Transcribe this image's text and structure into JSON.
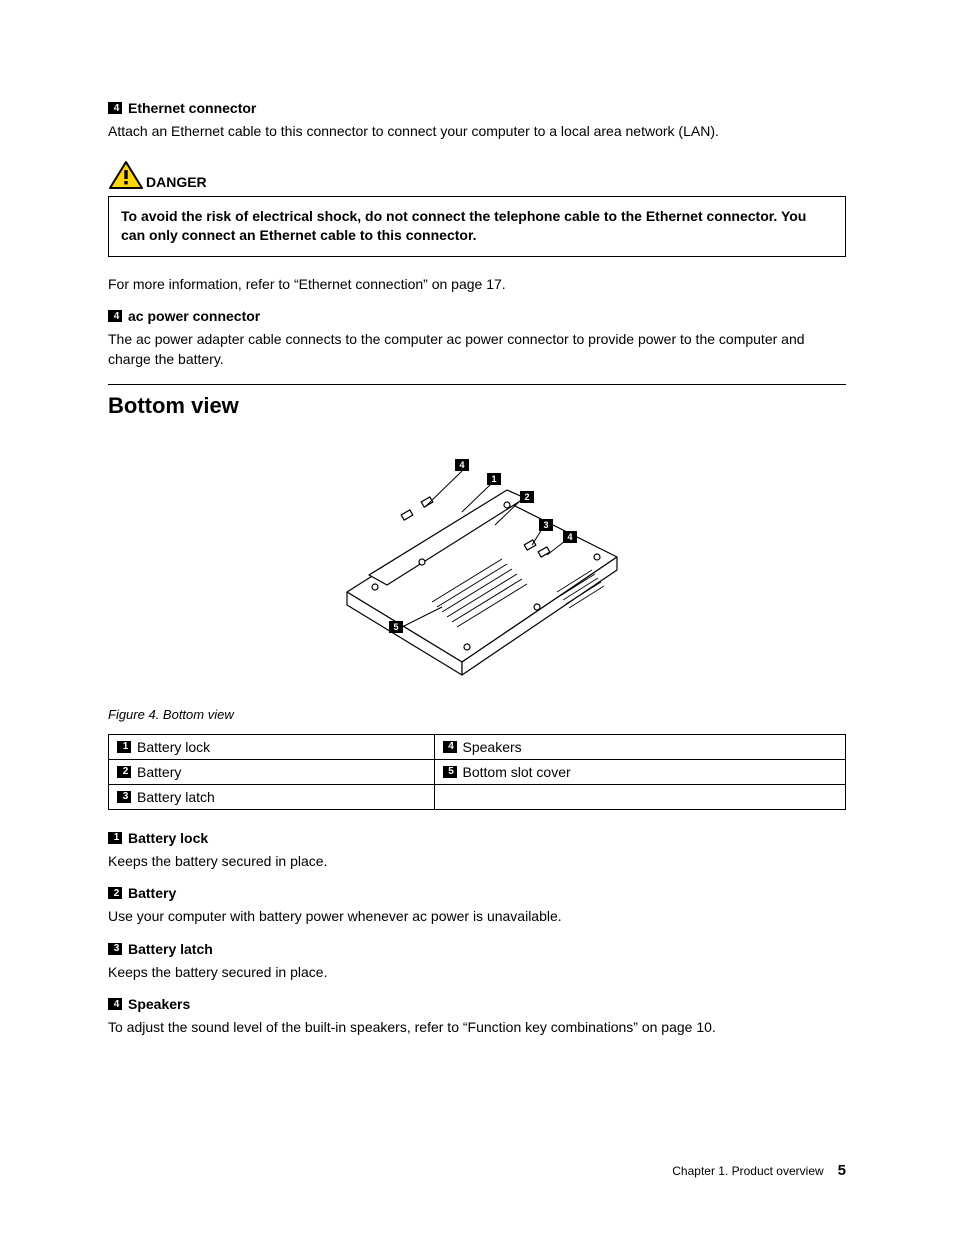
{
  "section1": {
    "badge": "4",
    "title": "Ethernet connector",
    "body": "Attach an Ethernet cable to this connector to connect your computer to a local area network (LAN)."
  },
  "danger": {
    "label": "DANGER",
    "text": "To avoid the risk of electrical shock, do not connect the telephone cable to the Ethernet connector. You can only connect an Ethernet cable to this connector."
  },
  "more_info": "For more information, refer to “Ethernet connection” on page 17.",
  "section2": {
    "badge": "4",
    "title": "ac power connector",
    "body": "The ac power adapter cable connects to the computer ac power connector to provide power to the computer and charge the battery."
  },
  "main_heading": "Bottom view",
  "figure": {
    "caption": "Figure 4.  Bottom view",
    "callouts": [
      "1",
      "2",
      "3",
      "4",
      "4",
      "5"
    ]
  },
  "table": {
    "rows": [
      [
        {
          "num": "1",
          "label": "Battery lock"
        },
        {
          "num": "4",
          "label": "Speakers"
        }
      ],
      [
        {
          "num": "2",
          "label": "Battery"
        },
        {
          "num": "5",
          "label": "Bottom slot cover"
        }
      ],
      [
        {
          "num": "3",
          "label": "Battery latch"
        },
        null
      ]
    ]
  },
  "descriptions": [
    {
      "num": "1",
      "title": "Battery lock",
      "body": "Keeps the battery secured in place."
    },
    {
      "num": "2",
      "title": "Battery",
      "body": "Use your computer with battery power whenever ac power is unavailable."
    },
    {
      "num": "3",
      "title": "Battery latch",
      "body": "Keeps the battery secured in place."
    },
    {
      "num": "4",
      "title": "Speakers",
      "body": "To adjust the sound level of the built-in speakers, refer to “Function key combinations” on page 10."
    }
  ],
  "footer": {
    "chapter": "Chapter 1.  Product overview",
    "page": "5"
  },
  "colors": {
    "warning_fill": "#ffd600",
    "warning_stroke": "#000000"
  }
}
